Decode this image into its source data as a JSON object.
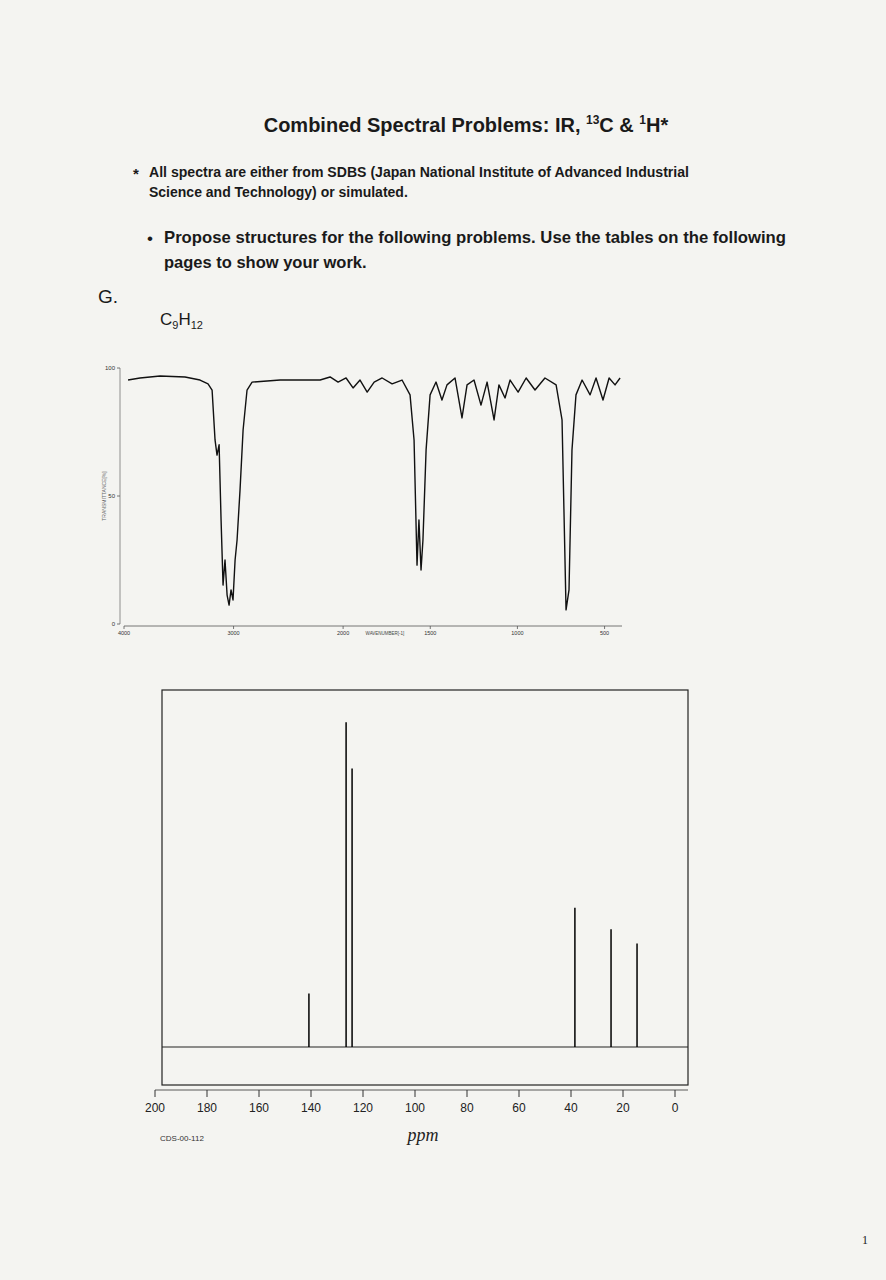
{
  "header": {
    "title": [
      {
        "text": "Combined Spectral Problems: IR, "
      },
      {
        "sup": "13"
      },
      {
        "text": "C & "
      },
      {
        "sup": "1"
      },
      {
        "text": "H*"
      }
    ]
  },
  "footnote": {
    "marker": "*",
    "lines": [
      "All spectra are either from SDBS (Japan National Institute of Advanced Industrial",
      "Science and Technology) or simulated."
    ]
  },
  "instruction": {
    "bullet": "•",
    "lines": [
      "Propose structures for the following problems.  Use the tables on the following",
      "pages to show your work."
    ]
  },
  "problem": {
    "label": "G.",
    "formula": [
      {
        "text": "C"
      },
      {
        "sub": "9"
      },
      {
        "text": "H"
      },
      {
        "sub": "12"
      }
    ]
  },
  "chart_data": [
    {
      "type": "line",
      "x_label": "WAVENUMBER[-1]",
      "y_label": "TRANSMITTANCE[%]",
      "x": [
        3963,
        3854,
        3671,
        3443,
        3306,
        3233,
        3196,
        3169,
        3151,
        3132,
        3114,
        3096,
        3078,
        3059,
        3041,
        3023,
        3005,
        2986,
        2968,
        2941,
        2913,
        2877,
        2831,
        2575,
        2210,
        2119,
        2046,
        1983,
        1943,
        1903,
        1862,
        1822,
        1776,
        1719,
        1662,
        1616,
        1593,
        1576,
        1565,
        1553,
        1542,
        1524,
        1501,
        1467,
        1433,
        1404,
        1358,
        1318,
        1289,
        1249,
        1209,
        1174,
        1134,
        1106,
        1071,
        1042,
        996,
        950,
        899,
        842,
        778,
        744,
        721,
        704,
        687,
        664,
        629,
        583,
        549,
        509,
        474,
        440,
        411
      ],
      "series": [
        {
          "color": "#111111",
          "values": [
            95.3,
            96.1,
            96.9,
            96.5,
            95.3,
            93.8,
            91.4,
            71.9,
            66.0,
            70.0,
            40.6,
            15.2,
            25.0,
            11.3,
            7.4,
            13.3,
            9.4,
            25.0,
            32.8,
            52.3,
            75.8,
            91.4,
            94.5,
            95.3,
            95.3,
            96.5,
            94.5,
            96.1,
            92.2,
            95.3,
            90.6,
            94.5,
            96.1,
            93.8,
            95.3,
            89.5,
            71.9,
            23.0,
            40.6,
            21.1,
            32.8,
            68.0,
            89.5,
            94.5,
            87.5,
            93.4,
            96.1,
            80.5,
            93.4,
            95.3,
            85.5,
            94.5,
            79.7,
            93.4,
            88.3,
            95.3,
            90.6,
            96.1,
            91.4,
            96.1,
            93.4,
            79.7,
            5.5,
            13.3,
            68.0,
            89.5,
            95.3,
            89.5,
            96.1,
            87.5,
            96.1,
            93.4,
            96.1
          ]
        }
      ],
      "xlim": [
        4000,
        400
      ],
      "xticks": [
        4000,
        3000,
        2000,
        1500,
        1000,
        500
      ],
      "ylim": [
        0,
        100
      ],
      "yticks": [
        0,
        50,
        100
      ]
    },
    {
      "type": "stick",
      "x_label": "ppm",
      "code": "CDS-00-112",
      "x": [
        140.8,
        126.5,
        124.2,
        38.5,
        24.6,
        14.6
      ],
      "values": [
        15,
        91,
        78,
        39,
        33,
        29
      ],
      "color": "#000000",
      "xlim": [
        200,
        -5
      ],
      "xticks": [
        200,
        180,
        160,
        140,
        120,
        100,
        80,
        60,
        40,
        20,
        0
      ],
      "ylim": [
        0,
        100
      ],
      "tick_labels": "x"
    }
  ],
  "page_number": "1"
}
